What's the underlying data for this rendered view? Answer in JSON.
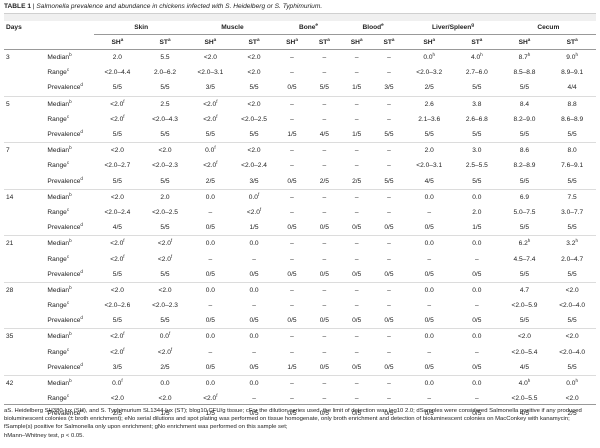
{
  "caption": {
    "label": "TABLE 1",
    "sep": " | ",
    "title": "Salmonella prevalence and abundance in chickens infected with S. Heidelberg or S. Typhimurium."
  },
  "header": {
    "days": "Days",
    "groups": [
      "Skin",
      "Muscle",
      "Bone",
      "Blood",
      "Liver/Spleen",
      "Cecum"
    ],
    "group_sups": [
      "",
      "",
      "e",
      "e",
      "g",
      ""
    ],
    "sub": [
      "SH",
      "ST"
    ],
    "sub_sup": "a"
  },
  "rows": [
    {
      "day": "3",
      "label": "Median",
      "lsup": "b",
      "cells": [
        "2.0",
        "5.5",
        "<2.0",
        "<2.0",
        "–",
        "–",
        "–",
        "–",
        "0.0",
        "4.0",
        "8.7",
        "9.0"
      ],
      "csup": [
        "",
        "",
        "",
        "",
        "",
        "",
        "",
        "",
        "h",
        "h",
        "h",
        "h"
      ]
    },
    {
      "day": "",
      "label": "Range",
      "lsup": "c",
      "cells": [
        "<2.0–4.4",
        "2.0–6.2",
        "<2.0–3.1",
        "<2.0",
        "–",
        "–",
        "–",
        "–",
        "<2.0–3.2",
        "2.7–6.0",
        "8.5–8.8",
        "8.9–9.1"
      ],
      "csup": [
        "",
        "",
        "",
        "",
        "",
        "",
        "",
        "",
        "",
        "",
        "",
        ""
      ]
    },
    {
      "day": "",
      "label": "Prevalence",
      "lsup": "d",
      "cells": [
        "5/5",
        "5/5",
        "3/5",
        "5/5",
        "0/5",
        "5/5",
        "1/5",
        "3/5",
        "2/5",
        "5/5",
        "5/5",
        "4/4"
      ],
      "csup": [
        "",
        "",
        "",
        "",
        "",
        "",
        "",
        "",
        "",
        "",
        "",
        ""
      ]
    },
    {
      "day": "5",
      "label": "Median",
      "lsup": "b",
      "cells": [
        "<2.0",
        "2.5",
        "<2.0",
        "<2.0",
        "–",
        "–",
        "–",
        "–",
        "2.6",
        "3.8",
        "8.4",
        "8.8"
      ],
      "csup": [
        "f",
        "",
        "f",
        "",
        "",
        "",
        "",
        "",
        "",
        "",
        "",
        ""
      ]
    },
    {
      "day": "",
      "label": "Range",
      "lsup": "c",
      "cells": [
        "<2.0",
        "<2.0–4.3",
        "<2.0",
        "<2.0–2.5",
        "–",
        "–",
        "–",
        "–",
        "2.1–3.6",
        "2.6–6.8",
        "8.2–9.0",
        "8.6–8.9"
      ],
      "csup": [
        "f",
        "",
        "f",
        "",
        "",
        "",
        "",
        "",
        "",
        "",
        "",
        ""
      ]
    },
    {
      "day": "",
      "label": "Prevalence",
      "lsup": "d",
      "cells": [
        "5/5",
        "5/5",
        "5/5",
        "5/5",
        "1/5",
        "4/5",
        "1/5",
        "5/5",
        "5/5",
        "5/5",
        "5/5",
        "5/5"
      ],
      "csup": [
        "",
        "",
        "",
        "",
        "",
        "",
        "",
        "",
        "",
        "",
        "",
        ""
      ]
    },
    {
      "day": "7",
      "label": "Median",
      "lsup": "b",
      "cells": [
        "<2.0",
        "<2.0",
        "0.0",
        "<2.0",
        "–",
        "–",
        "–",
        "–",
        "2.0",
        "3.0",
        "8.6",
        "8.0"
      ],
      "csup": [
        "",
        "",
        "f",
        "",
        "",
        "",
        "",
        "",
        "",
        "",
        "",
        ""
      ]
    },
    {
      "day": "",
      "label": "Range",
      "lsup": "c",
      "cells": [
        "<2.0–2.7",
        "<2.0–2.3",
        "<2.0",
        "<2.0–2.4",
        "–",
        "–",
        "–",
        "–",
        "<2.0–3.1",
        "2.5–5.5",
        "8.2–8.9",
        "7.6–9.1"
      ],
      "csup": [
        "",
        "",
        "f",
        "",
        "",
        "",
        "",
        "",
        "",
        "",
        "",
        ""
      ]
    },
    {
      "day": "",
      "label": "Prevalence",
      "lsup": "d",
      "cells": [
        "5/5",
        "5/5",
        "2/5",
        "3/5",
        "0/5",
        "2/5",
        "2/5",
        "5/5",
        "4/5",
        "5/5",
        "5/5",
        "5/5"
      ],
      "csup": [
        "",
        "",
        "",
        "",
        "",
        "",
        "",
        "",
        "",
        "",
        "",
        ""
      ]
    },
    {
      "day": "14",
      "label": "Median",
      "lsup": "b",
      "cells": [
        "<2.0",
        "2.0",
        "0.0",
        "0.0",
        "–",
        "–",
        "–",
        "–",
        "0.0",
        "0.0",
        "6.9",
        "7.5"
      ],
      "csup": [
        "",
        "",
        "",
        "f",
        "",
        "",
        "",
        "",
        "",
        "",
        "",
        ""
      ]
    },
    {
      "day": "",
      "label": "Range",
      "lsup": "c",
      "cells": [
        "<2.0–2.4",
        "<2.0–2.5",
        "–",
        "<2.0",
        "–",
        "–",
        "–",
        "–",
        "–",
        "2.0",
        "5.0–7.5",
        "3.0–7.7"
      ],
      "csup": [
        "",
        "",
        "",
        "f",
        "",
        "",
        "",
        "",
        "",
        "",
        "",
        ""
      ]
    },
    {
      "day": "",
      "label": "Prevalence",
      "lsup": "d",
      "cells": [
        "4/5",
        "5/5",
        "0/5",
        "1/5",
        "0/5",
        "0/5",
        "0/5",
        "0/5",
        "0/5",
        "1/5",
        "5/5",
        "5/5"
      ],
      "csup": [
        "",
        "",
        "",
        "",
        "",
        "",
        "",
        "",
        "",
        "",
        "",
        ""
      ]
    },
    {
      "day": "21",
      "label": "Median",
      "lsup": "b",
      "cells": [
        "<2.0",
        "<2.0",
        "0.0",
        "0.0",
        "–",
        "–",
        "–",
        "–",
        "0.0",
        "0.0",
        "6.2",
        "3.2"
      ],
      "csup": [
        "f",
        "f",
        "",
        "",
        "",
        "",
        "",
        "",
        "",
        "",
        "h",
        "h"
      ]
    },
    {
      "day": "",
      "label": "Range",
      "lsup": "c",
      "cells": [
        "<2.0",
        "<2.0",
        "–",
        "–",
        "–",
        "–",
        "–",
        "–",
        "–",
        "–",
        "4.5–7.4",
        "2.0–4.7"
      ],
      "csup": [
        "f",
        "f",
        "",
        "",
        "",
        "",
        "",
        "",
        "",
        "",
        "",
        ""
      ]
    },
    {
      "day": "",
      "label": "Prevalence",
      "lsup": "d",
      "cells": [
        "5/5",
        "5/5",
        "0/5",
        "0/5",
        "0/5",
        "0/5",
        "0/5",
        "0/5",
        "0/5",
        "0/5",
        "5/5",
        "5/5"
      ],
      "csup": [
        "",
        "",
        "",
        "",
        "",
        "",
        "",
        "",
        "",
        "",
        "",
        ""
      ]
    },
    {
      "day": "28",
      "label": "Median",
      "lsup": "b",
      "cells": [
        "<2.0",
        "<2.0",
        "0.0",
        "0.0",
        "–",
        "–",
        "–",
        "–",
        "0.0",
        "0.0",
        "4.7",
        "<2.0"
      ],
      "csup": [
        "",
        "",
        "",
        "",
        "",
        "",
        "",
        "",
        "",
        "",
        "",
        ""
      ]
    },
    {
      "day": "",
      "label": "Range",
      "lsup": "c",
      "cells": [
        "<2.0–2.6",
        "<2.0–2.3",
        "–",
        "–",
        "–",
        "–",
        "–",
        "–",
        "–",
        "–",
        "<2.0–5.9",
        "<2.0–4.0"
      ],
      "csup": [
        "",
        "",
        "",
        "",
        "",
        "",
        "",
        "",
        "",
        "",
        "",
        ""
      ]
    },
    {
      "day": "",
      "label": "Prevalence",
      "lsup": "d",
      "cells": [
        "5/5",
        "5/5",
        "0/5",
        "0/5",
        "0/5",
        "0/5",
        "0/5",
        "0/5",
        "0/5",
        "0/5",
        "5/5",
        "5/5"
      ],
      "csup": [
        "",
        "",
        "",
        "",
        "",
        "",
        "",
        "",
        "",
        "",
        "",
        ""
      ]
    },
    {
      "day": "35",
      "label": "Median",
      "lsup": "b",
      "cells": [
        "<2.0",
        "0.0",
        "0.0",
        "0.0",
        "–",
        "–",
        "–",
        "–",
        "0.0",
        "0.0",
        "<2.0",
        "<2.0"
      ],
      "csup": [
        "f",
        "f",
        "",
        "",
        "",
        "",
        "",
        "",
        "",
        "",
        "",
        ""
      ]
    },
    {
      "day": "",
      "label": "Range",
      "lsup": "c",
      "cells": [
        "<2.0",
        "<2.0",
        "–",
        "–",
        "–",
        "–",
        "–",
        "–",
        "–",
        "–",
        "<2.0–5.4",
        "<2.0–4.0"
      ],
      "csup": [
        "f",
        "f",
        "",
        "",
        "",
        "",
        "",
        "",
        "",
        "",
        "",
        ""
      ]
    },
    {
      "day": "",
      "label": "Prevalence",
      "lsup": "d",
      "cells": [
        "3/5",
        "2/5",
        "0/5",
        "0/5",
        "1/5",
        "0/5",
        "0/5",
        "0/5",
        "0/5",
        "0/5",
        "4/5",
        "5/5"
      ],
      "csup": [
        "",
        "",
        "",
        "",
        "",
        "",
        "",
        "",
        "",
        "",
        "",
        ""
      ]
    },
    {
      "day": "42",
      "label": "Median",
      "lsup": "b",
      "cells": [
        "0.0",
        "0.0",
        "0.0",
        "0.0",
        "–",
        "–",
        "–",
        "–",
        "0.0",
        "0.0",
        "4.0",
        "0.0"
      ],
      "csup": [
        "f",
        "",
        "",
        "",
        "",
        "",
        "",
        "",
        "",
        "",
        "h",
        "h"
      ]
    },
    {
      "day": "",
      "label": "Range",
      "lsup": "c",
      "cells": [
        "<2.0",
        "<2.0",
        "<2.0",
        "–",
        "–",
        "–",
        "–",
        "–",
        "–",
        "–",
        "<2.0–5.5",
        "<2.0"
      ],
      "csup": [
        "",
        "",
        "f",
        "",
        "",
        "",
        "",
        "",
        "",
        "",
        "",
        ""
      ]
    },
    {
      "day": "",
      "label": "Prevalence",
      "lsup": "d",
      "cells": [
        "2/5",
        "1/5",
        "1/5",
        "0/5",
        "0/5",
        "0/5",
        "0/5",
        "0/5",
        "0/5",
        "0/5",
        "4/5",
        "2/5"
      ],
      "csup": [
        "",
        "",
        "",
        "",
        "",
        "",
        "",
        "",
        "",
        "",
        "",
        ""
      ]
    }
  ],
  "footnotes": [
    "aS. Heidelberg SH380-lux (SH), and S. Typhimurium SL1344-lux (ST); blog10 CFU/g tissue; cFor the dilution series used, the limit of detection was log10 2.0; dSamples were considered Salmonella positive if any produced bioluminescent colonies (± broth enrichment); eNo serial dilutions and spot plating was performed on tissue homogenate, only broth enrichment and detection of bioluminescent colonies on MacConkey with kanamycin; fSample(s) positive for Salmonella only upon enrichment; gNo enrichment was performed on this sample set;",
    "hMann–Whitney test, p < 0.05."
  ]
}
